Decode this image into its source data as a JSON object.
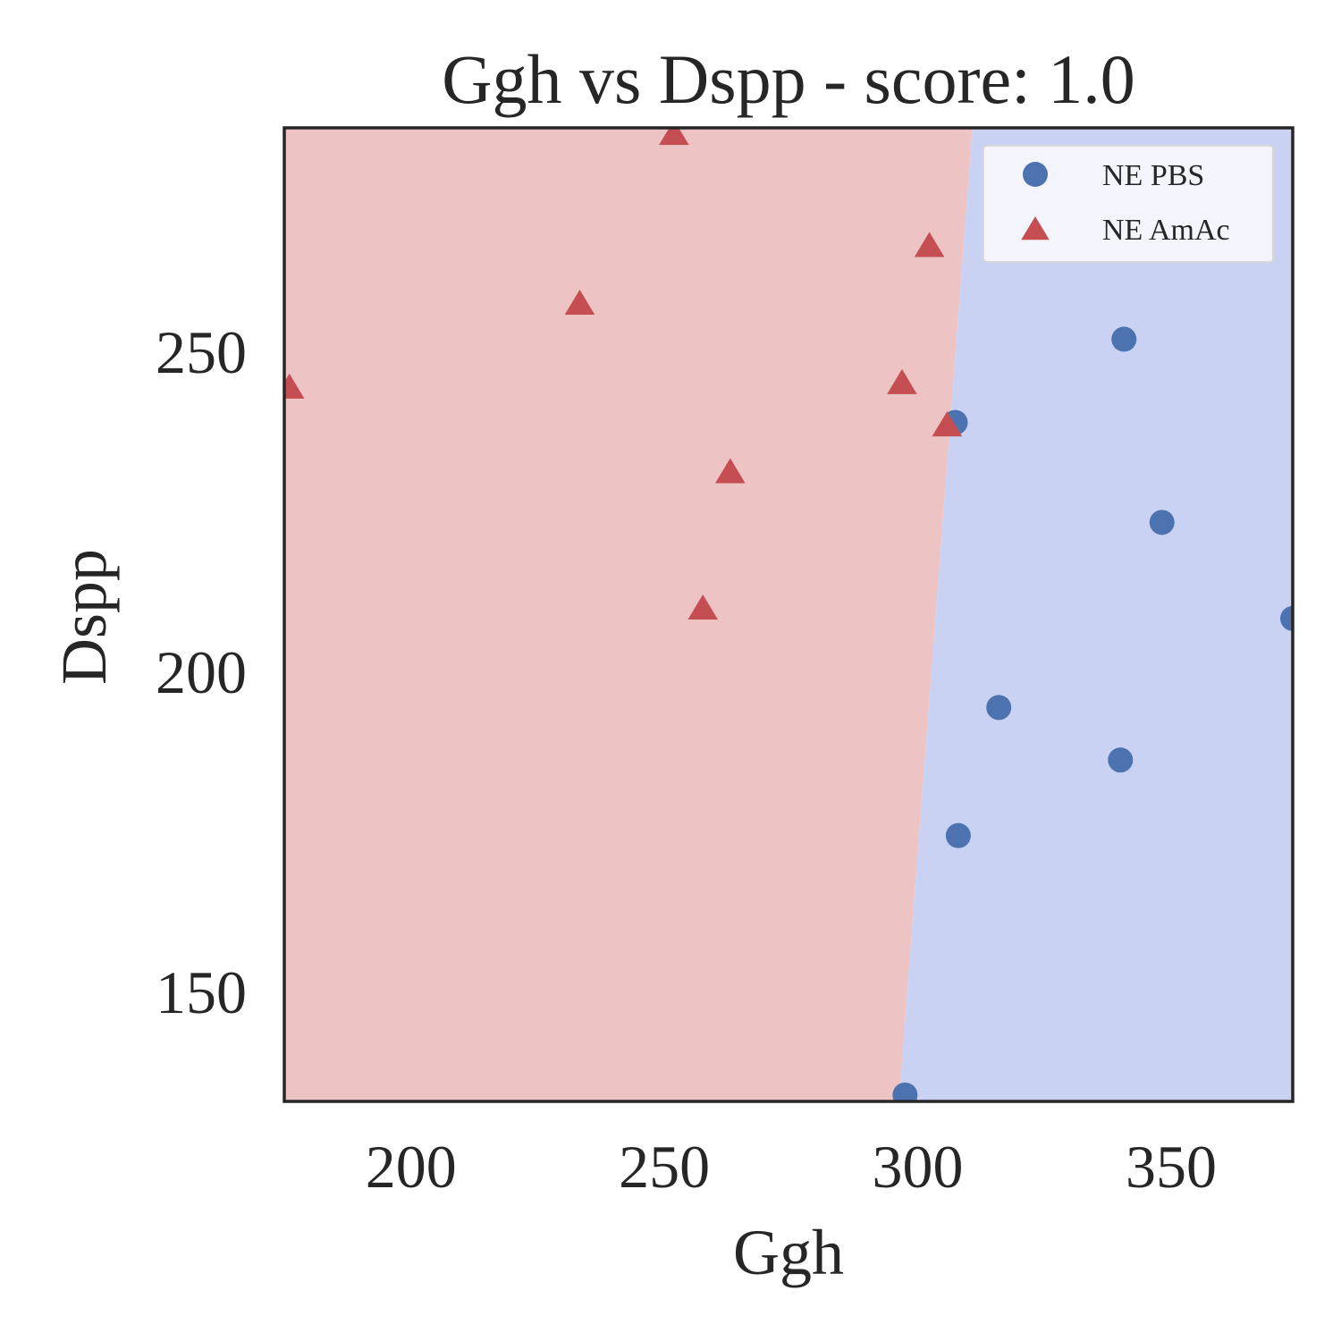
{
  "chart_data": {
    "type": "scatter",
    "title": "Ggh vs Dspp - score: 1.0",
    "xlabel": "Ggh",
    "ylabel": "Dspp",
    "xlim": [
      175,
      374
    ],
    "ylim": [
      133,
      285
    ],
    "xticks": [
      200,
      250,
      300,
      350
    ],
    "yticks": [
      150,
      200,
      250
    ],
    "grid": false,
    "legend_position": "top-right",
    "decision_boundary": {
      "x_at_ymin": 296.3,
      "x_at_ymax": 310.8
    },
    "regions": [
      {
        "class": "NE AmAc",
        "side": "left",
        "color": "#edc4c3"
      },
      {
        "class": "NE PBS",
        "side": "right",
        "color": "#c9d2f2"
      }
    ],
    "series": [
      {
        "name": "NE PBS",
        "marker": "circle",
        "color": "#4c72b0",
        "points": [
          {
            "x": 340.7,
            "y": 252.0
          },
          {
            "x": 307.4,
            "y": 239.0
          },
          {
            "x": 348.2,
            "y": 223.4
          },
          {
            "x": 374.0,
            "y": 208.4
          },
          {
            "x": 316.0,
            "y": 194.5
          },
          {
            "x": 340.0,
            "y": 186.3
          },
          {
            "x": 308.0,
            "y": 174.5
          },
          {
            "x": 297.5,
            "y": 134.0
          }
        ]
      },
      {
        "name": "NE AmAc",
        "marker": "triangle",
        "color": "#c44e52",
        "points": [
          {
            "x": 251.9,
            "y": 284.0
          },
          {
            "x": 302.3,
            "y": 266.5
          },
          {
            "x": 233.3,
            "y": 257.5
          },
          {
            "x": 176.0,
            "y": 244.4
          },
          {
            "x": 296.9,
            "y": 245.1
          },
          {
            "x": 305.8,
            "y": 238.5
          },
          {
            "x": 263.0,
            "y": 231.2
          },
          {
            "x": 257.6,
            "y": 209.9
          }
        ]
      }
    ]
  }
}
